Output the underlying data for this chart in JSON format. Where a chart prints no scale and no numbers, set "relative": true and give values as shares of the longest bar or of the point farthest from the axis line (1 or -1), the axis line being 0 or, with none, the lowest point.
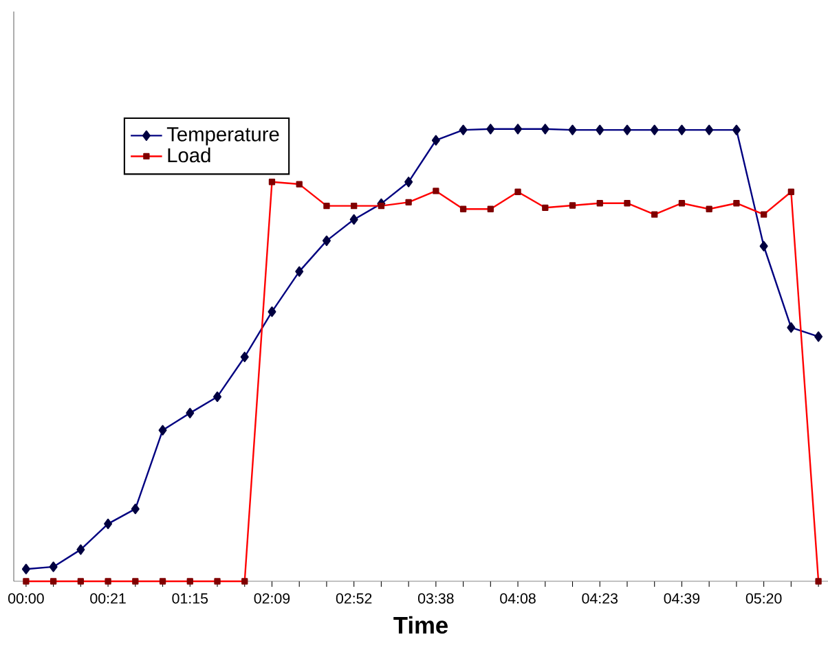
{
  "chart_data": {
    "type": "line",
    "xlabel": "**Time**",
    "relative": true,
    "legend": "top left",
    "grid": false,
    "categories": [
      "00:00",
      null,
      null,
      "00:21",
      null,
      null,
      "01:15",
      null,
      null,
      "02:09",
      null,
      null,
      "02:52",
      null,
      null,
      "03:38",
      null,
      null,
      "04:08",
      null,
      null,
      "04:23",
      null,
      null,
      "04:39",
      null,
      null,
      "05:20",
      null,
      null
    ],
    "series": [
      {
        "name": "Temperature",
        "color": "#000080",
        "marker": "diamond",
        "values": [
          0.027,
          0.032,
          0.07,
          0.127,
          0.16,
          0.334,
          0.372,
          0.408,
          0.496,
          0.596,
          0.685,
          0.753,
          0.8,
          0.835,
          0.883,
          0.975,
          0.998,
          1.0,
          1.0,
          1.0,
          0.998,
          0.998,
          0.998,
          0.998,
          0.998,
          0.998,
          0.998,
          0.741,
          0.561,
          0.541
        ]
      },
      {
        "name": "Load",
        "color": "#ff0000",
        "marker": "square",
        "values": [
          0,
          0,
          0,
          0,
          0,
          0,
          0,
          0,
          0,
          0.883,
          0.878,
          0.83,
          0.83,
          0.83,
          0.838,
          0.863,
          0.823,
          0.823,
          0.861,
          0.826,
          0.831,
          0.836,
          0.836,
          0.811,
          0.836,
          0.823,
          0.836,
          0.811,
          0.861,
          0
        ]
      }
    ]
  }
}
